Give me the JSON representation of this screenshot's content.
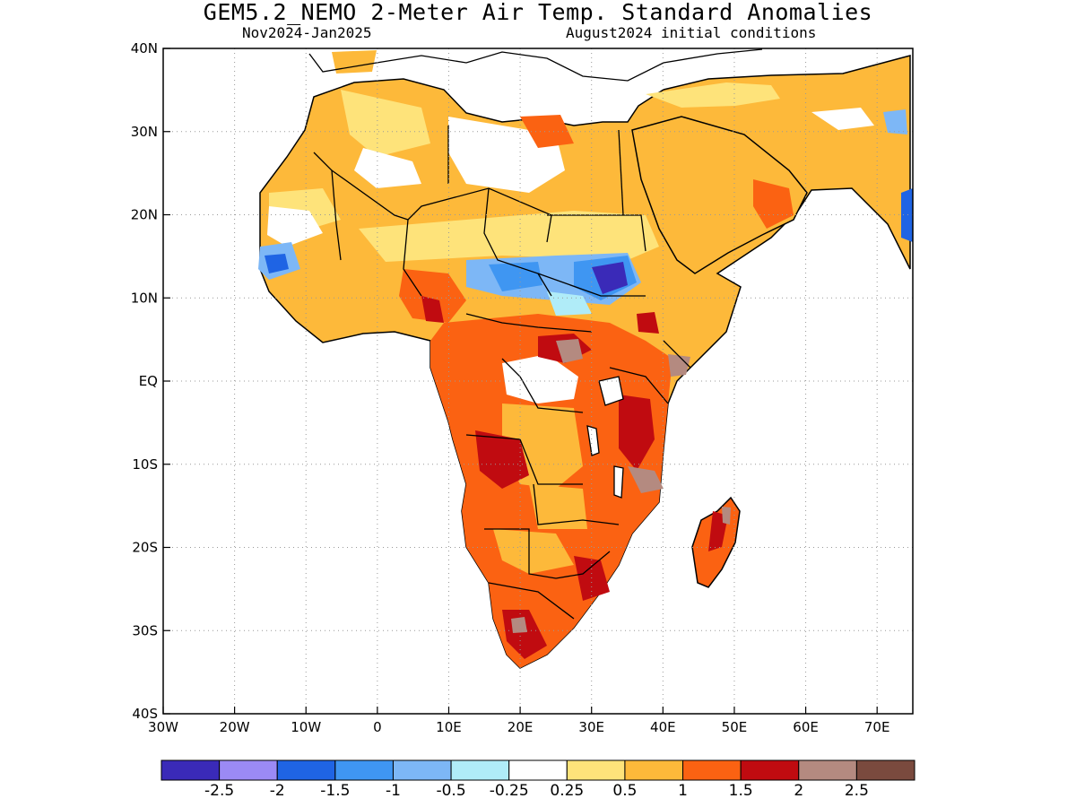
{
  "title": "GEM5.2_NEMO 2-Meter Air Temp. Standard Anomalies",
  "subtitle_left": "Nov2024-Jan2025",
  "subtitle_right": "August2024 initial conditions",
  "axes": {
    "lon_range": [
      -30,
      75
    ],
    "lat_range": [
      -40,
      40
    ],
    "x_ticks": [
      {
        "value": -30,
        "label": "30W"
      },
      {
        "value": -20,
        "label": "20W"
      },
      {
        "value": -10,
        "label": "10W"
      },
      {
        "value": 0,
        "label": "0"
      },
      {
        "value": 10,
        "label": "10E"
      },
      {
        "value": 20,
        "label": "20E"
      },
      {
        "value": 30,
        "label": "30E"
      },
      {
        "value": 40,
        "label": "40E"
      },
      {
        "value": 50,
        "label": "50E"
      },
      {
        "value": 60,
        "label": "60E"
      },
      {
        "value": 70,
        "label": "70E"
      }
    ],
    "y_ticks": [
      {
        "value": 40,
        "label": "40N"
      },
      {
        "value": 30,
        "label": "30N"
      },
      {
        "value": 20,
        "label": "20N"
      },
      {
        "value": 10,
        "label": "10N"
      },
      {
        "value": 0,
        "label": "EQ"
      },
      {
        "value": -10,
        "label": "10S"
      },
      {
        "value": -20,
        "label": "20S"
      },
      {
        "value": -30,
        "label": "30S"
      },
      {
        "value": -40,
        "label": "40S"
      }
    ],
    "grid": true
  },
  "colorbar": {
    "colors": [
      "#3a2ab8",
      "#9b8af5",
      "#1f64e4",
      "#3f96f2",
      "#7db7f6",
      "#b0ecf8",
      "#ffffff",
      "#fee37a",
      "#fdb93a",
      "#fb6212",
      "#c00b10",
      "#b48a80",
      "#7a4a3e"
    ],
    "labels": [
      "-2.5",
      "-2",
      "-1.5",
      "-1",
      "-0.5",
      "-0.25",
      "0.25",
      "0.5",
      "1",
      "1.5",
      "2",
      "2.5"
    ]
  },
  "map_regions": [
    {
      "name": "northwest-africa",
      "color": "#fdb93a",
      "anomaly": "0.5 to 1"
    },
    {
      "name": "sahara-interior",
      "color": "#ffffff",
      "anomaly": "-0.25 to 0.25"
    },
    {
      "name": "sahel-central",
      "color": "#3f96f2",
      "anomaly": "-1.5 to -0.5"
    },
    {
      "name": "sudan-cold-core",
      "color": "#3a2ab8",
      "anomaly": "-2.5 to -1.5"
    },
    {
      "name": "arabia",
      "color": "#fdb93a",
      "anomaly": "0.5 to 1"
    },
    {
      "name": "central-africa",
      "color": "#fb6212",
      "anomaly": "1 to 1.5"
    },
    {
      "name": "southern-africa",
      "color": "#fb6212",
      "anomaly": "1 to 2"
    },
    {
      "name": "madagascar",
      "color": "#fb6212",
      "anomaly": "1 to 2"
    }
  ]
}
